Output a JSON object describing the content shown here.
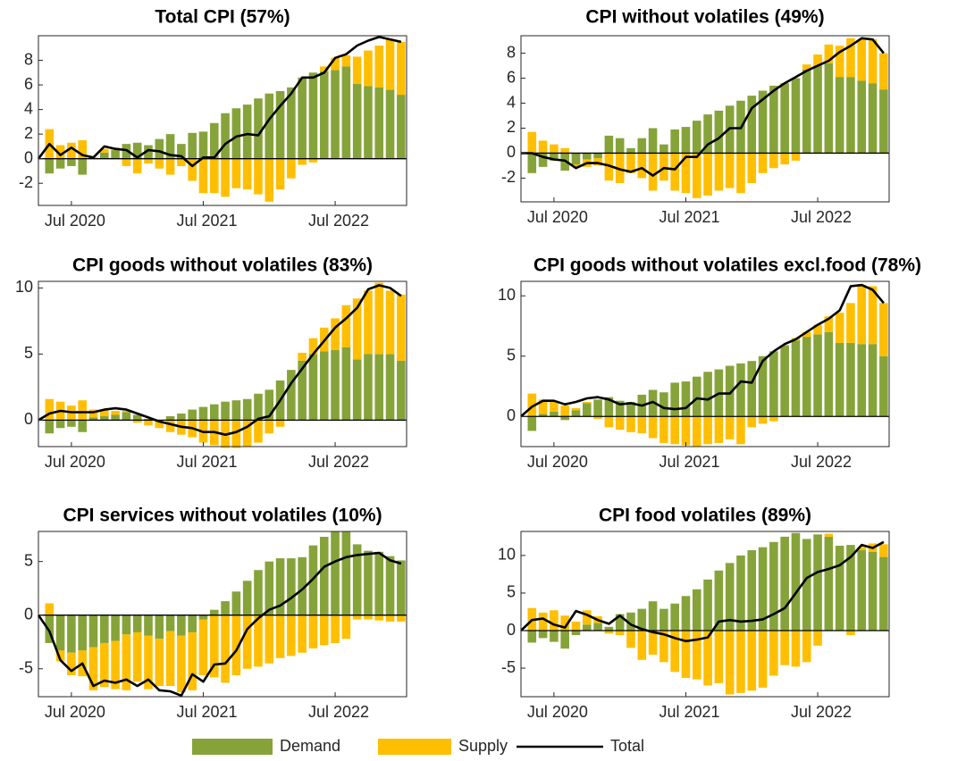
{
  "chart_data": [
    {
      "type": "bar",
      "title": "Total CPI (57%)",
      "categories": [
        null,
        null,
        null,
        "Jul 2020",
        null,
        null,
        null,
        null,
        null,
        null,
        null,
        null,
        null,
        null,
        null,
        "Jul 2021",
        null,
        null,
        null,
        null,
        null,
        null,
        null,
        null,
        null,
        null,
        null,
        "Jul 2022",
        null,
        null,
        null,
        null,
        null,
        null
      ],
      "ylim": [
        -3.8,
        10
      ],
      "yticks": [
        -2,
        0,
        2,
        4,
        6,
        8
      ],
      "series": [
        {
          "name": "Demand",
          "color": "#86a33a",
          "values": [
            null,
            -1.2,
            -0.8,
            -0.6,
            -1.3,
            0,
            0.5,
            0.7,
            1.2,
            1.3,
            1.1,
            1.6,
            2.0,
            1.2,
            2.1,
            2.2,
            2.9,
            3.7,
            4.1,
            4.4,
            4.9,
            5.3,
            5.5,
            5.8,
            6.6,
            7.0,
            7.1,
            7.2,
            7.5,
            6.1,
            5.9,
            5.8,
            5.6,
            5.2
          ]
        },
        {
          "name": "Supply",
          "color": "#ffbf00",
          "values": [
            null,
            2.4,
            1.1,
            1.3,
            1.5,
            0.1,
            0.3,
            0.2,
            -0.6,
            -1.2,
            -0.4,
            -0.8,
            -1.3,
            -0.6,
            -1.8,
            -2.8,
            -2.8,
            -3.1,
            -2.4,
            -2.5,
            -2.9,
            -3.5,
            -2.5,
            -1.6,
            -0.5,
            -0.3,
            0.4,
            1.0,
            0.9,
            2.2,
            2.9,
            3.4,
            4.1,
            4.3
          ]
        },
        {
          "name": "Total",
          "color": "#000000",
          "type": "line",
          "values": [
            0,
            1.2,
            0.3,
            0.9,
            0.3,
            0.1,
            1.0,
            0.8,
            0.7,
            0.1,
            0.7,
            0.6,
            0.3,
            0.2,
            -0.6,
            0.1,
            0.1,
            1.2,
            1.8,
            2.0,
            1.9,
            3.2,
            4.3,
            5.3,
            6.6,
            6.6,
            7.0,
            8.2,
            8.5,
            9.2,
            9.6,
            9.9,
            9.7,
            9.5
          ]
        }
      ]
    },
    {
      "type": "bar",
      "title": "CPI without volatiles (49%)",
      "categories": [
        null,
        null,
        null,
        "Jul 2020",
        null,
        null,
        null,
        null,
        null,
        null,
        null,
        null,
        null,
        null,
        null,
        "Jul 2021",
        null,
        null,
        null,
        null,
        null,
        null,
        null,
        null,
        null,
        null,
        null,
        "Jul 2022",
        null,
        null,
        null,
        null,
        null,
        null
      ],
      "ylim": [
        -3.9,
        9.4
      ],
      "yticks": [
        -2,
        0,
        2,
        4,
        6,
        8
      ],
      "series": [
        {
          "color": "#86a33a",
          "values": [
            null,
            -1.6,
            -1.1,
            -0.6,
            -1.4,
            -0.9,
            -0.5,
            -0.4,
            1.4,
            1.2,
            0.4,
            1.2,
            2.0,
            0.7,
            1.9,
            2.1,
            2.6,
            3.1,
            3.4,
            3.8,
            4.2,
            4.6,
            5.0,
            5.4,
            5.6,
            6.0,
            6.7,
            7.0,
            7.2,
            6.1,
            6.1,
            5.8,
            5.6,
            5.1
          ]
        },
        {
          "color": "#ffbf00",
          "values": [
            null,
            1.7,
            1.0,
            0.7,
            0.4,
            -0.2,
            -0.6,
            -0.6,
            -2.2,
            -2.4,
            -1.6,
            -2.0,
            -3.0,
            -2.2,
            -3.0,
            -3.2,
            -3.6,
            -3.4,
            -3.0,
            -2.8,
            -3.2,
            -2.4,
            -1.6,
            -1.2,
            -0.9,
            -0.6,
            0.4,
            0.9,
            1.5,
            2.5,
            3.1,
            3.3,
            3.5,
            2.9
          ]
        },
        {
          "color": "#000000",
          "type": "line",
          "values": [
            0,
            0,
            -0.3,
            -0.5,
            -0.6,
            -1.2,
            -0.8,
            -0.8,
            -1.0,
            -1.3,
            -1.5,
            -1.2,
            -1.8,
            -1.2,
            -1.3,
            -0.3,
            -0.3,
            0.7,
            1.2,
            2.0,
            2.0,
            3.6,
            4.3,
            5.0,
            5.6,
            6.1,
            6.6,
            7.0,
            7.4,
            8.1,
            8.6,
            9.2,
            9.1,
            8.0
          ]
        }
      ]
    },
    {
      "type": "bar",
      "title": "CPI goods without volatiles (83%)",
      "categories": [
        null,
        null,
        null,
        "Jul 2020",
        null,
        null,
        null,
        null,
        null,
        null,
        null,
        null,
        null,
        null,
        null,
        "Jul 2021",
        null,
        null,
        null,
        null,
        null,
        null,
        null,
        null,
        null,
        null,
        null,
        "Jul 2022",
        null,
        null,
        null,
        null,
        null,
        null
      ],
      "ylim": [
        -2,
        10.5
      ],
      "yticks": [
        0,
        5,
        10
      ],
      "series": [
        {
          "color": "#86a33a",
          "values": [
            null,
            -1.0,
            -0.6,
            -0.5,
            -0.9,
            0.2,
            0.3,
            0.4,
            0.6,
            0.4,
            0.1,
            0.0,
            0.3,
            0.5,
            0.8,
            1.0,
            1.2,
            1.4,
            1.5,
            1.6,
            2.0,
            2.3,
            3.0,
            3.8,
            4.5,
            5.0,
            5.2,
            5.3,
            5.5,
            4.6,
            5.0,
            5.0,
            5.0,
            4.5
          ]
        },
        {
          "color": "#ffbf00",
          "values": [
            null,
            1.6,
            1.4,
            1.1,
            1.5,
            0.6,
            0.5,
            0.3,
            0.1,
            -0.2,
            -0.4,
            -0.6,
            -0.9,
            -1.1,
            -1.3,
            -1.7,
            -1.9,
            -2.1,
            -2.1,
            -2.0,
            -1.7,
            -1.0,
            -0.5,
            0.0,
            0.6,
            1.2,
            1.8,
            2.4,
            3.2,
            4.6,
            4.8,
            5.4,
            4.8,
            5.0
          ]
        },
        {
          "color": "#000000",
          "type": "line",
          "values": [
            0,
            0.5,
            0.7,
            0.6,
            0.6,
            0.6,
            0.8,
            0.9,
            0.8,
            0.5,
            0.2,
            -0.1,
            -0.3,
            -0.5,
            -0.6,
            -0.9,
            -0.9,
            -1.1,
            -0.9,
            -0.5,
            0.1,
            0.3,
            1.5,
            2.8,
            3.9,
            5.0,
            6.0,
            7.0,
            7.7,
            8.5,
            9.9,
            10.2,
            10.0,
            9.4
          ]
        }
      ]
    },
    {
      "type": "bar",
      "title": "CPI goods without volatiles excl.food (78%)",
      "categories": [
        null,
        null,
        null,
        "Jul 2020",
        null,
        null,
        null,
        null,
        null,
        null,
        null,
        null,
        null,
        null,
        null,
        "Jul 2021",
        null,
        null,
        null,
        null,
        null,
        null,
        null,
        null,
        null,
        null,
        null,
        "Jul 2022",
        null,
        null,
        null,
        null,
        null,
        null
      ],
      "ylim": [
        -2.5,
        11.2
      ],
      "yticks": [
        0,
        5,
        10
      ],
      "series": [
        {
          "color": "#86a33a",
          "values": [
            null,
            -1.2,
            0.2,
            0.4,
            -0.3,
            0.5,
            1.1,
            1.4,
            1.6,
            1.3,
            1.2,
            1.8,
            2.2,
            2.0,
            2.8,
            2.9,
            3.3,
            3.7,
            3.9,
            4.2,
            4.4,
            4.6,
            5.0,
            5.4,
            5.9,
            6.3,
            6.6,
            6.8,
            7.0,
            6.1,
            6.1,
            6.0,
            6.0,
            5.0
          ]
        },
        {
          "color": "#ffbf00",
          "values": [
            null,
            1.9,
            1.2,
            0.9,
            0.9,
            0.2,
            0.1,
            -0.2,
            -0.9,
            -1.1,
            -1.3,
            -1.4,
            -1.8,
            -2.2,
            -2.3,
            -2.4,
            -2.5,
            -2.3,
            -2.2,
            -1.9,
            -2.3,
            -0.9,
            -0.6,
            -0.4,
            0.0,
            0.2,
            0.4,
            0.8,
            1.3,
            2.5,
            3.3,
            4.9,
            4.8,
            4.4
          ]
        },
        {
          "color": "#000000",
          "type": "line",
          "values": [
            0,
            0.8,
            1.3,
            1.3,
            1.0,
            1.2,
            1.5,
            1.6,
            1.4,
            1.0,
            1.1,
            0.9,
            1.2,
            0.7,
            0.6,
            0.7,
            1.5,
            1.4,
            1.9,
            1.9,
            2.9,
            2.8,
            4.6,
            5.4,
            6.0,
            6.4,
            7.0,
            7.6,
            8.1,
            8.8,
            10.8,
            10.9,
            10.5,
            9.4
          ]
        }
      ]
    },
    {
      "type": "bar",
      "title": "CPI services without volatiles (10%)",
      "categories": [
        null,
        null,
        null,
        "Jul 2020",
        null,
        null,
        null,
        null,
        null,
        null,
        null,
        null,
        null,
        null,
        null,
        "Jul 2021",
        null,
        null,
        null,
        null,
        null,
        null,
        null,
        null,
        null,
        null,
        null,
        "Jul 2022",
        null,
        null,
        null,
        null,
        null,
        null
      ],
      "ylim": [
        -7.6,
        7.8
      ],
      "yticks": [
        -5,
        0,
        5
      ],
      "series": [
        {
          "color": "#86a33a",
          "values": [
            null,
            -2.6,
            -3.3,
            -3.5,
            -3.3,
            -3.0,
            -2.6,
            -2.4,
            -1.8,
            -1.6,
            -1.9,
            -2.2,
            -1.5,
            -1.9,
            -1.6,
            -0.4,
            0.5,
            1.3,
            2.2,
            3.2,
            4.2,
            5.0,
            5.3,
            5.3,
            5.4,
            6.5,
            7.3,
            7.8,
            7.8,
            6.6,
            6.0,
            5.9,
            5.5,
            5.1
          ]
        },
        {
          "color": "#ffbf00",
          "values": [
            null,
            1.1,
            -1.0,
            -2.1,
            -2.4,
            -4.0,
            -4.1,
            -4.5,
            -5.2,
            -4.6,
            -5.0,
            -4.4,
            -5.1,
            -5.3,
            -5.4,
            -5.2,
            -5.8,
            -6.3,
            -5.6,
            -5.0,
            -4.8,
            -4.5,
            -4.0,
            -3.8,
            -3.5,
            -3.1,
            -2.8,
            -2.6,
            -2.2,
            -0.4,
            -0.4,
            -0.5,
            -0.6,
            -0.6
          ]
        },
        {
          "color": "#000000",
          "type": "line",
          "values": [
            0,
            -1.5,
            -4.2,
            -5.2,
            -4.5,
            -6.6,
            -6.1,
            -6.3,
            -6.0,
            -6.6,
            -6.0,
            -7.0,
            -7.1,
            -7.5,
            -5.5,
            -6.2,
            -4.6,
            -4.5,
            -3.3,
            -1.3,
            -0.3,
            0.5,
            0.9,
            1.6,
            2.4,
            3.4,
            4.5,
            5.0,
            5.4,
            5.6,
            5.7,
            5.8,
            5.1,
            4.8
          ]
        }
      ]
    },
    {
      "type": "bar",
      "title": "CPI food volatiles (89%)",
      "categories": [
        null,
        null,
        null,
        "Jul 2020",
        null,
        null,
        null,
        null,
        null,
        null,
        null,
        null,
        null,
        null,
        null,
        "Jul 2021",
        null,
        null,
        null,
        null,
        null,
        null,
        null,
        null,
        null,
        null,
        null,
        "Jul 2022",
        null,
        null,
        null,
        null,
        null,
        null
      ],
      "ylim": [
        -8.8,
        13.2
      ],
      "yticks": [
        -5,
        0,
        5,
        10
      ],
      "series": [
        {
          "color": "#86a33a",
          "values": [
            null,
            -1.6,
            -1.0,
            -1.5,
            -2.4,
            -0.6,
            0.8,
            1.0,
            0.5,
            2.2,
            2.4,
            2.9,
            3.9,
            2.9,
            3.6,
            4.6,
            5.5,
            6.8,
            8.0,
            9.0,
            10.0,
            10.7,
            11.1,
            11.8,
            12.5,
            13.0,
            12.2,
            12.8,
            12.5,
            11.3,
            11.4,
            10.7,
            10.5,
            9.8
          ]
        },
        {
          "color": "#ffbf00",
          "values": [
            null,
            3.0,
            2.4,
            2.7,
            2.0,
            1.2,
            1.9,
            0.9,
            -0.4,
            -0.6,
            -2.3,
            -3.9,
            -3.2,
            -4.2,
            -5.5,
            -6.3,
            -6.5,
            -7.3,
            -7.0,
            -8.5,
            -8.3,
            -8.0,
            -7.6,
            -6.0,
            -4.6,
            -4.8,
            -4.2,
            -2.0,
            0.4,
            0,
            -0.6,
            0.4,
            1.1,
            1.7
          ]
        },
        {
          "color": "#000000",
          "type": "line",
          "values": [
            0,
            1.4,
            1.6,
            0.8,
            0.4,
            2.6,
            2.1,
            1.4,
            0.9,
            2.0,
            0.8,
            0.2,
            -0.2,
            -0.5,
            -1.0,
            -1.4,
            -1.2,
            -0.9,
            1.2,
            1.4,
            1.2,
            1.3,
            1.5,
            2.2,
            3.0,
            5.0,
            7.0,
            7.8,
            8.2,
            8.7,
            9.8,
            11.4,
            11.0,
            11.8
          ]
        }
      ]
    }
  ]
}
